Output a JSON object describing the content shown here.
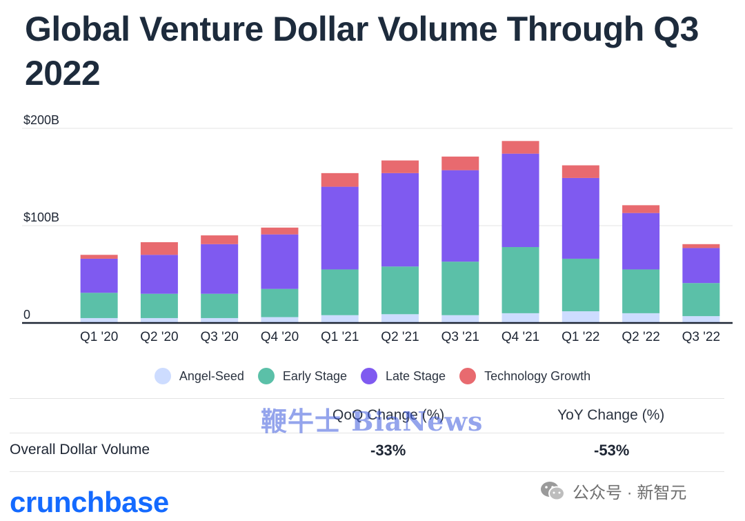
{
  "title": "Global Venture Dollar Volume Through Q3 2022",
  "chart_data": {
    "type": "bar",
    "stacked": true,
    "categories": [
      "Q1 '20",
      "Q2 '20",
      "Q3 '20",
      "Q4 '20",
      "Q1 '21",
      "Q2 '21",
      "Q3 '21",
      "Q4 '21",
      "Q1 '22",
      "Q2 '22",
      "Q3 '22"
    ],
    "series": [
      {
        "name": "Angel-Seed",
        "color": "#cddcff",
        "values": [
          5,
          5,
          5,
          6,
          8,
          9,
          8,
          10,
          12,
          10,
          7
        ]
      },
      {
        "name": "Early Stage",
        "color": "#5bc0a8",
        "values": [
          26,
          25,
          25,
          29,
          47,
          49,
          55,
          68,
          54,
          45,
          34
        ]
      },
      {
        "name": "Late Stage",
        "color": "#7f5af0",
        "values": [
          35,
          40,
          51,
          56,
          85,
          96,
          94,
          96,
          83,
          58,
          36
        ]
      },
      {
        "name": "Technology Growth",
        "color": "#e86a6f",
        "values": [
          4,
          13,
          9,
          7,
          14,
          13,
          14,
          13,
          13,
          8,
          4
        ]
      }
    ],
    "ylim": [
      0,
      200
    ],
    "yticks": [
      {
        "value": 0,
        "label": "0"
      },
      {
        "value": 100,
        "label": "$100B"
      },
      {
        "value": 200,
        "label": "$200B"
      }
    ],
    "grid": true,
    "legend_position": "bottom",
    "xlabel": "",
    "ylabel": ""
  },
  "table": {
    "headers": [
      "QoQ Change (%)",
      "YoY Change (%)"
    ],
    "row_label": "Overall Dollar Volume",
    "qoq": "-33%",
    "yoy": "-53%"
  },
  "watermark": "鞭牛士 BiaNews",
  "account": "公众号 · 新智元",
  "brand": "crunchbase",
  "colors": {
    "title": "#1d2b3c",
    "brand": "#146aff",
    "axis": "#1d2533",
    "grid": "#e3e3e3"
  }
}
